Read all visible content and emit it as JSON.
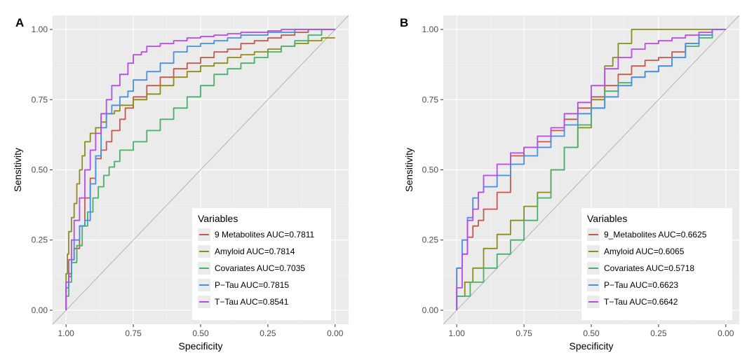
{
  "chart_data": [
    {
      "type": "line",
      "panel_label": "A",
      "xlabel": "Specificity",
      "ylabel": "Sensitivity",
      "xlim": [
        1.0,
        0.0
      ],
      "ylim": [
        0.0,
        1.0
      ],
      "x_reversed": true,
      "xticks": [
        "1.00",
        "0.75",
        "0.50",
        "0.25",
        "0.00"
      ],
      "yticks": [
        "0.00",
        "0.25",
        "0.50",
        "0.75",
        "1.00"
      ],
      "grid": true,
      "legend": {
        "title": "Variables",
        "position": "bottom-right"
      },
      "series": [
        {
          "name": "9 Metabolites AUC=0.7811",
          "color": "#c45a4f",
          "x": [
            1.0,
            0.99,
            0.98,
            0.97,
            0.95,
            0.93,
            0.91,
            0.89,
            0.87,
            0.85,
            0.83,
            0.8,
            0.78,
            0.75,
            0.7,
            0.65,
            0.6,
            0.55,
            0.5,
            0.45,
            0.4,
            0.35,
            0.3,
            0.25,
            0.2,
            0.15,
            0.1,
            0.05,
            0.0
          ],
          "y": [
            0.0,
            0.08,
            0.13,
            0.18,
            0.22,
            0.3,
            0.4,
            0.47,
            0.54,
            0.57,
            0.6,
            0.64,
            0.68,
            0.72,
            0.76,
            0.8,
            0.83,
            0.86,
            0.88,
            0.9,
            0.92,
            0.93,
            0.95,
            0.96,
            0.97,
            0.98,
            0.99,
            1.0,
            1.0
          ]
        },
        {
          "name": "Amyloid AUC=0.7814",
          "color": "#8c8c1f",
          "x": [
            1.0,
            0.995,
            0.99,
            0.98,
            0.97,
            0.96,
            0.95,
            0.94,
            0.93,
            0.91,
            0.89,
            0.87,
            0.85,
            0.82,
            0.8,
            0.75,
            0.7,
            0.65,
            0.6,
            0.55,
            0.5,
            0.45,
            0.4,
            0.35,
            0.3,
            0.25,
            0.2,
            0.15,
            0.1,
            0.05,
            0.0
          ],
          "y": [
            0.0,
            0.13,
            0.2,
            0.28,
            0.33,
            0.38,
            0.45,
            0.5,
            0.55,
            0.6,
            0.63,
            0.65,
            0.67,
            0.7,
            0.71,
            0.73,
            0.75,
            0.77,
            0.8,
            0.83,
            0.85,
            0.87,
            0.88,
            0.9,
            0.91,
            0.92,
            0.93,
            0.94,
            0.95,
            0.96,
            0.97
          ]
        },
        {
          "name": "Covariates AUC=0.7035",
          "color": "#4caf6a",
          "x": [
            1.0,
            0.99,
            0.98,
            0.96,
            0.94,
            0.92,
            0.9,
            0.88,
            0.86,
            0.84,
            0.82,
            0.8,
            0.75,
            0.7,
            0.65,
            0.6,
            0.55,
            0.5,
            0.45,
            0.4,
            0.35,
            0.3,
            0.25,
            0.2,
            0.15,
            0.1,
            0.05,
            0.0
          ],
          "y": [
            0.0,
            0.05,
            0.1,
            0.17,
            0.23,
            0.3,
            0.35,
            0.4,
            0.44,
            0.48,
            0.51,
            0.53,
            0.57,
            0.6,
            0.64,
            0.68,
            0.72,
            0.76,
            0.8,
            0.84,
            0.86,
            0.88,
            0.9,
            0.92,
            0.94,
            0.96,
            0.98,
            1.0
          ]
        },
        {
          "name": "P−Tau AUC=0.7815",
          "color": "#4a90e2",
          "x": [
            1.0,
            0.99,
            0.98,
            0.97,
            0.95,
            0.93,
            0.91,
            0.89,
            0.87,
            0.85,
            0.83,
            0.8,
            0.77,
            0.75,
            0.7,
            0.65,
            0.6,
            0.55,
            0.5,
            0.45,
            0.4,
            0.35,
            0.3,
            0.25,
            0.2,
            0.15,
            0.1,
            0.05,
            0.0
          ],
          "y": [
            0.0,
            0.08,
            0.12,
            0.18,
            0.25,
            0.3,
            0.32,
            0.45,
            0.55,
            0.65,
            0.7,
            0.73,
            0.76,
            0.78,
            0.82,
            0.85,
            0.88,
            0.92,
            0.94,
            0.95,
            0.96,
            0.97,
            0.98,
            0.98,
            0.99,
            0.99,
            1.0,
            1.0,
            1.0
          ]
        },
        {
          "name": "T−Tau AUC=0.8541",
          "color": "#b44ee6",
          "x": [
            1.0,
            0.99,
            0.98,
            0.97,
            0.95,
            0.93,
            0.91,
            0.89,
            0.87,
            0.85,
            0.83,
            0.8,
            0.77,
            0.75,
            0.72,
            0.7,
            0.65,
            0.6,
            0.55,
            0.5,
            0.45,
            0.4,
            0.35,
            0.3,
            0.25,
            0.2,
            0.15,
            0.1,
            0.05,
            0.0
          ],
          "y": [
            0.0,
            0.1,
            0.18,
            0.25,
            0.32,
            0.4,
            0.5,
            0.57,
            0.63,
            0.7,
            0.75,
            0.8,
            0.84,
            0.88,
            0.91,
            0.92,
            0.94,
            0.95,
            0.96,
            0.97,
            0.975,
            0.98,
            0.985,
            0.99,
            0.99,
            0.995,
            1.0,
            1.0,
            1.0,
            1.0
          ]
        }
      ]
    },
    {
      "type": "line",
      "panel_label": "B",
      "xlabel": "Specificity",
      "ylabel": "Sensitivity",
      "xlim": [
        1.0,
        0.0
      ],
      "ylim": [
        0.0,
        1.0
      ],
      "x_reversed": true,
      "xticks": [
        "1.00",
        "0.75",
        "0.50",
        "0.25",
        "0.00"
      ],
      "yticks": [
        "0.00",
        "0.25",
        "0.50",
        "0.75",
        "1.00"
      ],
      "grid": true,
      "legend": {
        "title": "Variables",
        "position": "bottom-right"
      },
      "series": [
        {
          "name": "9_Metabolites AUC=0.6625",
          "color": "#c45a4f",
          "x": [
            1.0,
            0.98,
            0.96,
            0.94,
            0.92,
            0.9,
            0.85,
            0.8,
            0.75,
            0.7,
            0.65,
            0.6,
            0.55,
            0.5,
            0.45,
            0.4,
            0.35,
            0.3,
            0.25,
            0.2,
            0.15,
            0.1,
            0.05,
            0.0
          ],
          "y": [
            0.0,
            0.15,
            0.2,
            0.26,
            0.3,
            0.32,
            0.36,
            0.42,
            0.55,
            0.58,
            0.6,
            0.64,
            0.68,
            0.72,
            0.76,
            0.8,
            0.84,
            0.87,
            0.89,
            0.9,
            0.92,
            0.95,
            0.98,
            1.0
          ]
        },
        {
          "name": "Amyloid AUC=0.6065",
          "color": "#8c8c1f",
          "x": [
            1.0,
            0.97,
            0.94,
            0.9,
            0.85,
            0.8,
            0.75,
            0.7,
            0.65,
            0.6,
            0.55,
            0.5,
            0.45,
            0.42,
            0.4,
            0.35,
            0.3,
            0.25,
            0.2,
            0.15,
            0.1,
            0.05,
            0.0
          ],
          "y": [
            0.0,
            0.05,
            0.1,
            0.15,
            0.22,
            0.27,
            0.32,
            0.37,
            0.42,
            0.5,
            0.58,
            0.65,
            0.75,
            0.87,
            0.9,
            0.95,
            1.0,
            1.0,
            1.0,
            1.0,
            1.0,
            1.0,
            1.0
          ]
        },
        {
          "name": "Covariates AUC=0.5718",
          "color": "#4caf6a",
          "x": [
            1.0,
            0.95,
            0.9,
            0.85,
            0.8,
            0.75,
            0.7,
            0.65,
            0.6,
            0.55,
            0.5,
            0.45,
            0.4,
            0.35,
            0.3,
            0.25,
            0.2,
            0.15,
            0.1,
            0.05,
            0.0
          ],
          "y": [
            0.0,
            0.05,
            0.1,
            0.15,
            0.2,
            0.25,
            0.32,
            0.4,
            0.5,
            0.58,
            0.66,
            0.72,
            0.78,
            0.81,
            0.83,
            0.85,
            0.87,
            0.9,
            0.94,
            0.97,
            1.0
          ]
        },
        {
          "name": "P−Tau AUC=0.6623",
          "color": "#4a90e2",
          "x": [
            1.0,
            0.98,
            0.96,
            0.94,
            0.92,
            0.9,
            0.85,
            0.8,
            0.75,
            0.7,
            0.65,
            0.6,
            0.55,
            0.5,
            0.45,
            0.4,
            0.35,
            0.3,
            0.25,
            0.2,
            0.15,
            0.1,
            0.05,
            0.0
          ],
          "y": [
            0.0,
            0.15,
            0.25,
            0.33,
            0.4,
            0.42,
            0.44,
            0.48,
            0.52,
            0.55,
            0.58,
            0.62,
            0.66,
            0.7,
            0.72,
            0.76,
            0.8,
            0.83,
            0.85,
            0.87,
            0.9,
            0.95,
            0.98,
            1.0
          ]
        },
        {
          "name": "T−Tau AUC=0.6642",
          "color": "#b44ee6",
          "x": [
            1.0,
            0.98,
            0.96,
            0.94,
            0.92,
            0.9,
            0.85,
            0.8,
            0.75,
            0.7,
            0.65,
            0.6,
            0.55,
            0.5,
            0.45,
            0.4,
            0.35,
            0.3,
            0.25,
            0.2,
            0.15,
            0.1,
            0.05,
            0.0
          ],
          "y": [
            0.0,
            0.08,
            0.2,
            0.32,
            0.36,
            0.42,
            0.48,
            0.52,
            0.56,
            0.58,
            0.62,
            0.65,
            0.7,
            0.74,
            0.8,
            0.86,
            0.9,
            0.93,
            0.95,
            0.96,
            0.97,
            0.98,
            0.99,
            1.0
          ]
        }
      ]
    }
  ]
}
